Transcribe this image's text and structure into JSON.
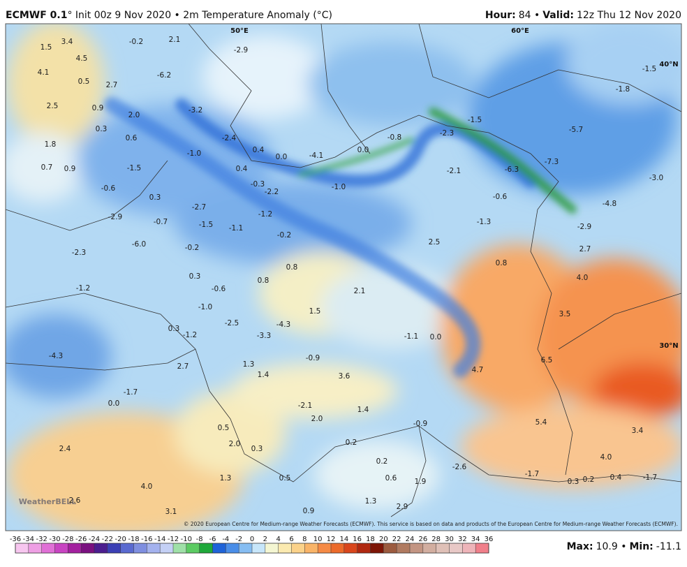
{
  "header": {
    "model": "ECMWF 0.1",
    "title_rest": "° Init 00z 9 Nov 2020 • 2m Temperature Anomaly (°C)",
    "hour_key": "Hour:",
    "hour_value": "84 •",
    "valid_key": "Valid:",
    "valid_value": "12z Thu 12 Nov 2020"
  },
  "grid_labels": [
    "50°E",
    "60°E",
    "40°N",
    "30°N"
  ],
  "map_values": [
    "1.5",
    "3.4",
    "-0.2",
    "2.1",
    "-2.9",
    "4.1",
    "4.5",
    "0.5",
    "2.7",
    "-6.2",
    "2.5",
    "0.9",
    "2.0",
    "-3.2",
    "0.3",
    "0.6",
    "-2.4",
    "1.8",
    "0.4",
    "0.0",
    "-4.1",
    "0.0",
    "-0.8",
    "-2.3",
    "-1.5",
    "-5.7",
    "-1.8",
    "-1.5",
    "0.7",
    "0.9",
    "-1.5",
    "-1.0",
    "0.4",
    "-6.3",
    "-7.3",
    "-2.1",
    "-3.0",
    "-0.6",
    "-0.3",
    "-2.2",
    "-1.0",
    "-0.6",
    "-4.8",
    "0.3",
    "-2.7",
    "-1.2",
    "-2.9",
    "-0.7",
    "-1.5",
    "-1.1",
    "-1.3",
    "-2.9",
    "-6.0",
    "-0.2",
    "2.5",
    "2.7",
    "-2.3",
    "-0.2",
    "0.8",
    "0.8",
    "0.3",
    "0.8",
    "4.0",
    "-1.2",
    "-0.6",
    "2.1",
    "-1.0",
    "1.5",
    "3.5",
    "0.3",
    "-2.5",
    "-4.3",
    "-1.1",
    "0.0",
    "-1.2",
    "-3.3",
    "-4.3",
    "-0.9",
    "6.5",
    "2.7",
    "1.3",
    "1.4",
    "3.6",
    "4.7",
    "-1.7",
    "0.0",
    "-2.1",
    "1.4",
    "2.0",
    "5.4",
    "-0.9",
    "0.5",
    "3.4",
    "2.4",
    "2.0",
    "0.3",
    "0.2",
    "0.2",
    "4.0",
    "-2.6",
    "1.3",
    "0.5",
    "0.6",
    "1.9",
    "-1.7",
    "0.3",
    "0.2",
    "0.4",
    "-1.7",
    "4.0",
    "2.6",
    "1.3",
    "2.9",
    "3.1",
    "0.9"
  ],
  "logo": "WeatherBELL",
  "copyright": "© 2020 European Centre for Medium-range Weather Forecasts (ECMWF). This service is based on data and products of the European Centre for Medium-range Weather Forecasts (ECMWF).",
  "colorbar": {
    "ticks": [
      -36,
      -34,
      -32,
      -30,
      -28,
      -26,
      -24,
      -22,
      -20,
      -18,
      -16,
      -14,
      -12,
      -10,
      -8,
      -6,
      -4,
      -2,
      0,
      2,
      4,
      6,
      8,
      10,
      12,
      14,
      16,
      18,
      20,
      22,
      24,
      26,
      28,
      30,
      32,
      34,
      36
    ],
    "colors": [
      "#f7c6ef",
      "#ee9fe4",
      "#e070d6",
      "#c844c2",
      "#a3209f",
      "#7a1080",
      "#4b1d8f",
      "#3b3fb5",
      "#5a6ad0",
      "#7f8fe0",
      "#a4b2ee",
      "#c4d0f5",
      "#9fe0a8",
      "#5ccb63",
      "#1fa83a",
      "#1f63d8",
      "#4a8ee8",
      "#86bdf2",
      "#c7e6fa",
      "#f4f6d2",
      "#fbeab0",
      "#fbd28a",
      "#f9b468",
      "#f58a45",
      "#ec6a2a",
      "#d9461c",
      "#b02810",
      "#7d1506",
      "#9c5b3f",
      "#b07a60",
      "#c39583",
      "#d2aea0",
      "#dfc0b7",
      "#e8c8c6",
      "#eeb4b9",
      "#f07f8a"
    ]
  },
  "footer": {
    "max_key": "Max:",
    "max_value": "10.9 •",
    "min_key": "Min:",
    "min_value": "-11.1"
  }
}
